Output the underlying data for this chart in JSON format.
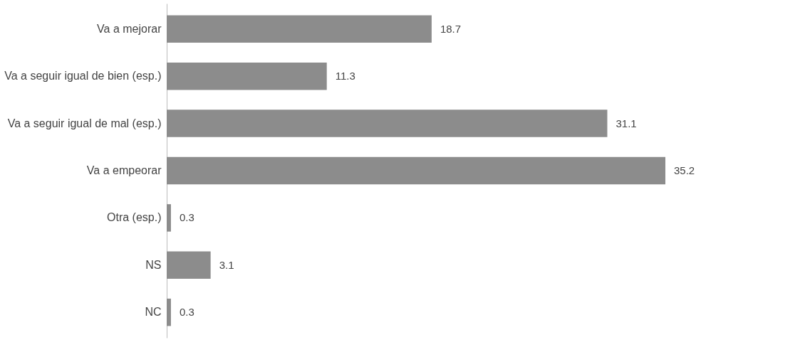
{
  "chart_data": {
    "type": "bar",
    "orientation": "horizontal",
    "data_labels": true,
    "categories": [
      "Va a mejorar",
      "Va a seguir igual de bien (esp.)",
      "Va a seguir igual de mal (esp.)",
      "Va a empeorar",
      "Otra (esp.)",
      "NS",
      "NC"
    ],
    "values": [
      18.7,
      11.3,
      31.1,
      35.2,
      0.3,
      3.1,
      0.3
    ],
    "color": "#8c8c8c"
  }
}
